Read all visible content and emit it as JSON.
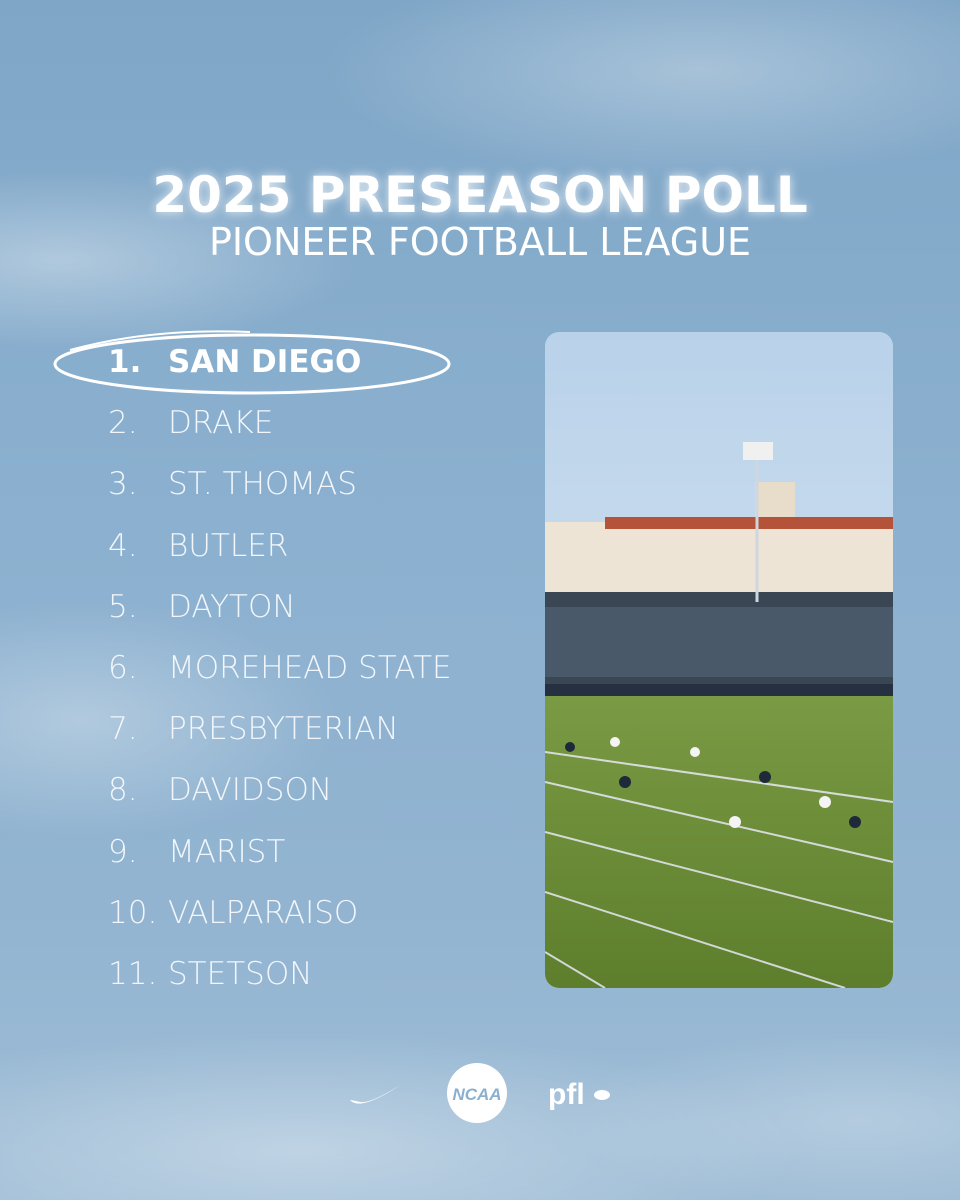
{
  "header": {
    "title": "2025 PRESEASON POLL",
    "subtitle": "PIONEER FOOTBALL LEAGUE"
  },
  "rankings": [
    {
      "rank": "1.",
      "team": "SAN DIEGO"
    },
    {
      "rank": "2.",
      "team": "DRAKE"
    },
    {
      "rank": "3.",
      "team": "ST. THOMAS"
    },
    {
      "rank": "4.",
      "team": "BUTLER"
    },
    {
      "rank": "5.",
      "team": "DAYTON"
    },
    {
      "rank": "6.",
      "team": "MOREHEAD STATE"
    },
    {
      "rank": "7.",
      "team": "PRESBYTERIAN"
    },
    {
      "rank": "8.",
      "team": "DAVIDSON"
    },
    {
      "rank": "9.",
      "team": "MARIST"
    },
    {
      "rank": "10.",
      "team": "VALPARAISO"
    },
    {
      "rank": "11.",
      "team": "STETSON"
    }
  ],
  "logos": {
    "ncaa": "NCAA",
    "pfl": "pfl"
  }
}
